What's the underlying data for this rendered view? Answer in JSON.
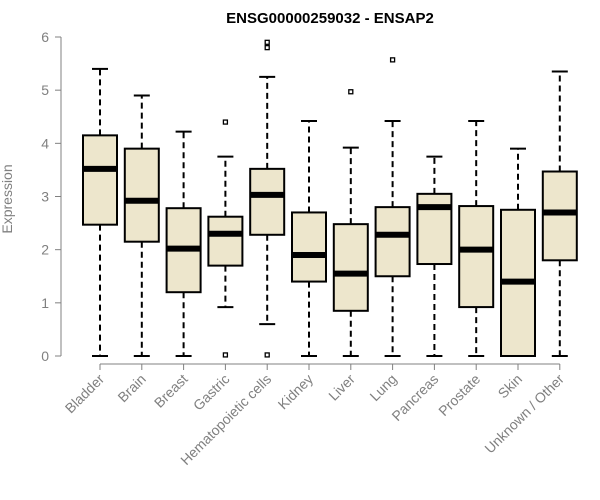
{
  "chart_data": {
    "type": "boxplot",
    "title": "ENSG00000259032 - ENSAP2",
    "xlabel": "",
    "ylabel": "Expression",
    "ylim": [
      0,
      6
    ],
    "yticks": [
      0,
      1,
      2,
      3,
      4,
      5,
      6
    ],
    "box_fill": "#ede6cc",
    "categories": [
      "Bladder",
      "Brain",
      "Breast",
      "Gastric",
      "Hematopoietic cells",
      "Kidney",
      "Liver",
      "Lung",
      "Pancreas",
      "Prostate",
      "Skin",
      "Unknown / Other"
    ],
    "boxes": [
      {
        "whisker_low": 0,
        "q1": 2.47,
        "median": 3.52,
        "q3": 4.15,
        "whisker_high": 5.4,
        "outliers": []
      },
      {
        "whisker_low": 0,
        "q1": 2.15,
        "median": 2.92,
        "q3": 3.9,
        "whisker_high": 4.9,
        "outliers": []
      },
      {
        "whisker_low": 0,
        "q1": 1.2,
        "median": 2.02,
        "q3": 2.78,
        "whisker_high": 4.22,
        "outliers": []
      },
      {
        "whisker_low": 0.92,
        "q1": 1.7,
        "median": 2.3,
        "q3": 2.62,
        "whisker_high": 3.75,
        "outliers": [
          4.4,
          0.02
        ]
      },
      {
        "whisker_low": 0.6,
        "q1": 2.28,
        "median": 3.03,
        "q3": 3.52,
        "whisker_high": 5.25,
        "outliers": [
          5.9,
          5.8,
          0.02
        ]
      },
      {
        "whisker_low": 0,
        "q1": 1.4,
        "median": 1.9,
        "q3": 2.7,
        "whisker_high": 4.42,
        "outliers": []
      },
      {
        "whisker_low": 0,
        "q1": 0.85,
        "median": 1.55,
        "q3": 2.48,
        "whisker_high": 3.92,
        "outliers": [
          4.97
        ]
      },
      {
        "whisker_low": 0,
        "q1": 1.5,
        "median": 2.28,
        "q3": 2.8,
        "whisker_high": 4.42,
        "outliers": [
          5.57
        ]
      },
      {
        "whisker_low": 0,
        "q1": 1.73,
        "median": 2.8,
        "q3": 3.05,
        "whisker_high": 3.75,
        "outliers": []
      },
      {
        "whisker_low": 0,
        "q1": 0.92,
        "median": 2.0,
        "q3": 2.82,
        "whisker_high": 4.42,
        "outliers": []
      },
      {
        "whisker_low": 0,
        "q1": 0,
        "median": 1.4,
        "q3": 2.75,
        "whisker_high": 3.9,
        "outliers": []
      },
      {
        "whisker_low": 0,
        "q1": 1.8,
        "median": 2.7,
        "q3": 3.47,
        "whisker_high": 5.35,
        "outliers": []
      }
    ]
  }
}
